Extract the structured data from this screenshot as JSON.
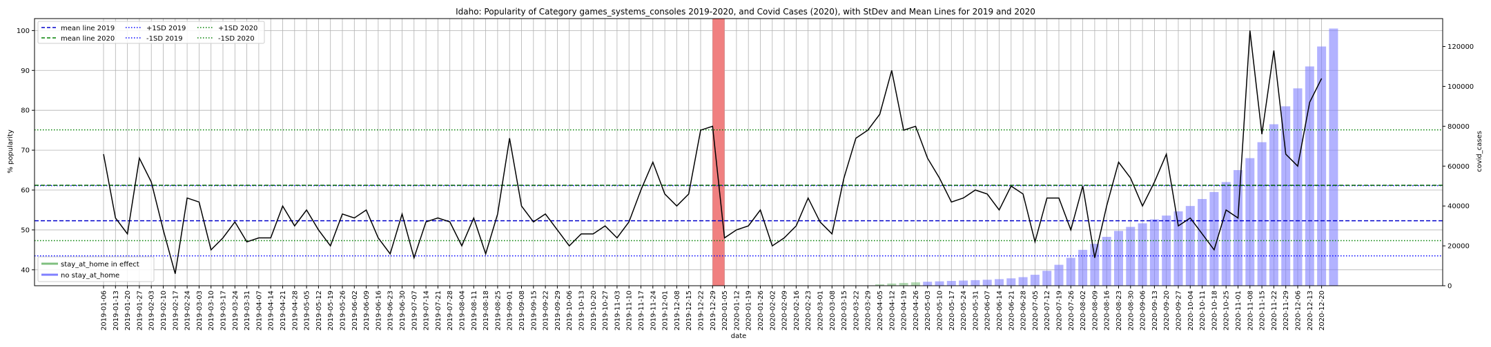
{
  "chart_data": {
    "type": "line+bar",
    "title": "Idaho: Popularity of Category games_systems_consoles 2019-2020, and Covid Cases (2020), with StDev and Mean Lines for 2019 and 2020",
    "xlabel": "date",
    "ylabel": "% popularity",
    "y2label": "covid_cases",
    "ylim": [
      36,
      103
    ],
    "y2lim": [
      0,
      134000
    ],
    "yticks": [
      40,
      50,
      60,
      70,
      80,
      90,
      100
    ],
    "y2ticks": [
      0,
      20000,
      40000,
      60000,
      80000,
      100000,
      120000
    ],
    "grid": true,
    "legend_top_left": [
      "mean line 2019",
      "mean line 2020",
      "+1SD 2019",
      "-1SD 2019",
      "+1SD 2020",
      "-1SD 2020"
    ],
    "legend_bottom_left": [
      "stay_at_home in effect",
      "no stay_at_home"
    ],
    "reference_lines": {
      "mean_2019": 52.3,
      "plus_1sd_2019": 61.1,
      "minus_1sd_2019": 43.5,
      "mean_2020": 61.2,
      "plus_1sd_2020": 75.1,
      "minus_1sd_2020": 47.3
    },
    "highlight_range": [
      "2019-12-29",
      "2020-01-05"
    ],
    "dates": [
      "2019-01-06",
      "2019-01-13",
      "2019-01-20",
      "2019-01-27",
      "2019-02-03",
      "2019-02-10",
      "2019-02-17",
      "2019-02-24",
      "2019-03-03",
      "2019-03-10",
      "2019-03-17",
      "2019-03-24",
      "2019-03-31",
      "2019-04-07",
      "2019-04-14",
      "2019-04-21",
      "2019-04-28",
      "2019-05-05",
      "2019-05-12",
      "2019-05-19",
      "2019-05-26",
      "2019-06-02",
      "2019-06-09",
      "2019-06-16",
      "2019-06-23",
      "2019-06-30",
      "2019-07-07",
      "2019-07-14",
      "2019-07-21",
      "2019-07-28",
      "2019-08-04",
      "2019-08-11",
      "2019-08-18",
      "2019-08-25",
      "2019-09-01",
      "2019-09-08",
      "2019-09-15",
      "2019-09-22",
      "2019-09-29",
      "2019-10-06",
      "2019-10-13",
      "2019-10-20",
      "2019-10-27",
      "2019-11-03",
      "2019-11-10",
      "2019-11-17",
      "2019-11-24",
      "2019-12-01",
      "2019-12-08",
      "2019-12-15",
      "2019-12-22",
      "2019-12-29",
      "2020-01-05",
      "2020-01-12",
      "2020-01-19",
      "2020-01-26",
      "2020-02-02",
      "2020-02-09",
      "2020-02-16",
      "2020-02-23",
      "2020-03-01",
      "2020-03-08",
      "2020-03-15",
      "2020-03-22",
      "2020-03-29",
      "2020-04-05",
      "2020-04-12",
      "2020-04-19",
      "2020-04-26",
      "2020-05-03",
      "2020-05-10",
      "2020-05-17",
      "2020-05-24",
      "2020-05-31",
      "2020-06-07",
      "2020-06-14",
      "2020-06-21",
      "2020-06-28",
      "2020-07-05",
      "2020-07-12",
      "2020-07-19",
      "2020-07-26",
      "2020-08-02",
      "2020-08-09",
      "2020-08-16",
      "2020-08-23",
      "2020-08-30",
      "2020-09-06",
      "2020-09-13",
      "2020-09-20",
      "2020-09-27",
      "2020-10-04",
      "2020-10-11",
      "2020-10-18",
      "2020-10-25",
      "2020-11-01",
      "2020-11-08",
      "2020-11-15",
      "2020-11-22",
      "2020-11-29",
      "2020-12-06",
      "2020-12-13",
      "2020-12-20"
    ],
    "popularity": [
      69,
      53,
      49,
      68,
      62,
      50,
      39,
      58,
      57,
      45,
      48,
      52,
      47,
      48,
      48,
      56,
      51,
      55,
      50,
      46,
      54,
      53,
      55,
      48,
      44,
      54,
      43,
      52,
      53,
      52,
      46,
      53,
      44,
      54,
      73,
      56,
      52,
      54,
      50,
      46,
      49,
      49,
      51,
      48,
      52,
      60,
      67,
      59,
      56,
      59,
      75,
      76,
      48,
      50,
      51,
      55,
      46,
      48,
      51,
      58,
      52,
      49,
      63,
      73,
      75,
      79,
      90,
      75,
      76,
      68,
      63,
      57,
      58,
      60,
      59,
      55,
      61,
      59,
      47,
      58,
      58,
      50,
      61,
      43,
      56,
      67,
      63,
      56,
      62,
      69,
      51,
      53,
      49,
      45,
      55,
      53,
      100,
      74,
      95,
      69,
      66,
      82,
      88
    ],
    "covid_cases": [
      0,
      0,
      0,
      0,
      0,
      0,
      0,
      0,
      0,
      0,
      0,
      0,
      0,
      0,
      0,
      0,
      0,
      0,
      0,
      0,
      0,
      0,
      0,
      0,
      0,
      0,
      0,
      0,
      0,
      0,
      0,
      0,
      0,
      0,
      0,
      0,
      0,
      0,
      0,
      0,
      0,
      0,
      0,
      0,
      0,
      0,
      0,
      0,
      0,
      0,
      0,
      0,
      0,
      0,
      0,
      0,
      0,
      0,
      0,
      0,
      0,
      0,
      0,
      0,
      0,
      700,
      1100,
      1400,
      1700,
      2000,
      2200,
      2400,
      2600,
      2800,
      3000,
      3300,
      3700,
      4300,
      5500,
      7500,
      10500,
      14000,
      18000,
      21000,
      24500,
      27500,
      29500,
      31300,
      33300,
      35200,
      37300,
      40000,
      43500,
      47000,
      52000,
      58000,
      64000,
      72000,
      81000,
      90000,
      99000,
      110000,
      120000,
      129000
    ]
  }
}
